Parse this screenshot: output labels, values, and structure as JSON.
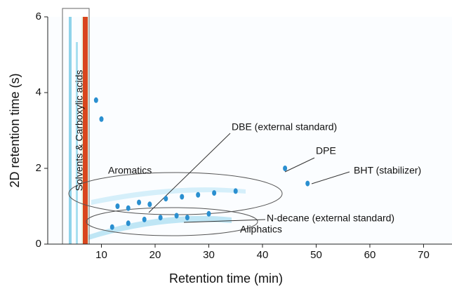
{
  "chart_data": {
    "type": "scatter",
    "x_label": "Retention time (min)",
    "y_label": "2D retention time (s)",
    "x": [
      9,
      10,
      12,
      13,
      15,
      15,
      17,
      18,
      19,
      21,
      22,
      24,
      25,
      26,
      28,
      30,
      31,
      35,
      44.2,
      48.4
    ],
    "y": [
      3.8,
      3.3,
      0.45,
      1.0,
      0.95,
      0.55,
      1.1,
      0.65,
      1.05,
      0.7,
      1.2,
      0.75,
      1.25,
      0.7,
      1.3,
      0.8,
      1.35,
      1.4,
      2.0,
      1.6
    ],
    "color": "#2a8fd0",
    "xlim": [
      0,
      75.3
    ],
    "xticks": [
      10,
      20,
      30,
      40,
      50,
      60,
      70
    ],
    "ylim": [
      0,
      6
    ],
    "yticks": [
      0,
      2,
      4,
      6
    ],
    "annotations": [
      "Solvents & Carboxylic acids",
      "DBE (external standard)",
      "DPE",
      "BHT (stabilizer)",
      "Aromatics",
      "N-decane (external standard)",
      "Aliphatics"
    ]
  }
}
